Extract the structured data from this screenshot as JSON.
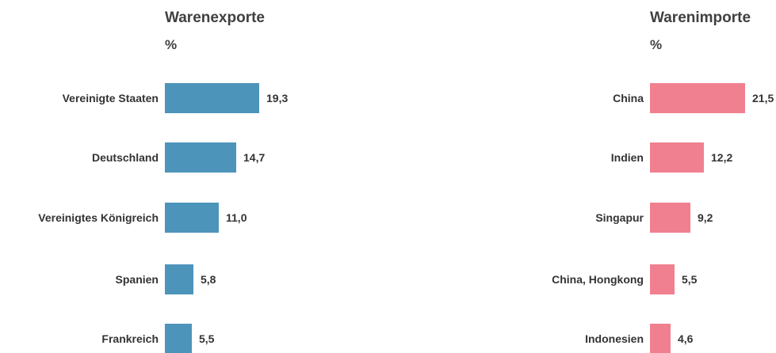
{
  "chart_data": [
    {
      "type": "bar",
      "orientation": "horizontal",
      "title": "Warenexporte",
      "unit": "%",
      "color": "#4d94bb",
      "categories": [
        "Vereinigte Staaten",
        "Deutschland",
        "Vereinigtes Königreich",
        "Spanien",
        "Frankreich"
      ],
      "values": [
        19.3,
        14.7,
        11.0,
        5.8,
        5.5
      ],
      "value_labels": [
        "19,3",
        "14,7",
        "11,0",
        "5,8",
        "5,5"
      ]
    },
    {
      "type": "bar",
      "orientation": "horizontal",
      "title": "Warenimporte",
      "unit": "%",
      "color": "#f08090",
      "categories": [
        "China",
        "Indien",
        "Singapur",
        "China, Hongkong",
        "Indonesien"
      ],
      "values": [
        21.5,
        12.2,
        9.2,
        5.5,
        4.6
      ],
      "value_labels": [
        "21,5",
        "12,2",
        "9,2",
        "5,5",
        "4,6"
      ]
    }
  ]
}
